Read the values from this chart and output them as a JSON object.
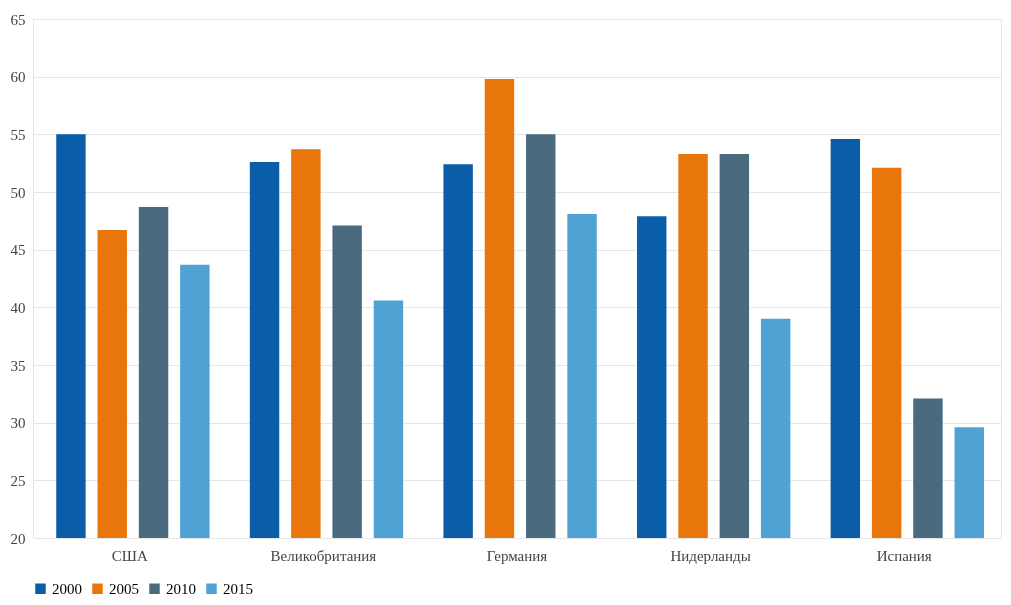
{
  "chart_data": {
    "type": "bar",
    "categories": [
      "США",
      "Великобритания",
      "Германия",
      "Нидерланды",
      "Испания"
    ],
    "series": [
      {
        "name": "2000",
        "color": "#0a5ea8",
        "values": [
          55.0,
          52.6,
          52.4,
          47.9,
          54.6
        ]
      },
      {
        "name": "2005",
        "color": "#e8760a",
        "values": [
          46.7,
          53.7,
          59.8,
          53.3,
          52.1
        ]
      },
      {
        "name": "2010",
        "color": "#4a6a80",
        "values": [
          48.7,
          47.1,
          55.0,
          53.3,
          32.1
        ]
      },
      {
        "name": "2015",
        "color": "#4fa3d4",
        "values": [
          43.7,
          40.6,
          48.1,
          39.0,
          29.6
        ]
      }
    ],
    "ylim": [
      20,
      65
    ],
    "yticks": [
      20,
      25,
      30,
      35,
      40,
      45,
      50,
      55,
      60,
      65
    ],
    "grid": "y",
    "legend": "bottom"
  }
}
